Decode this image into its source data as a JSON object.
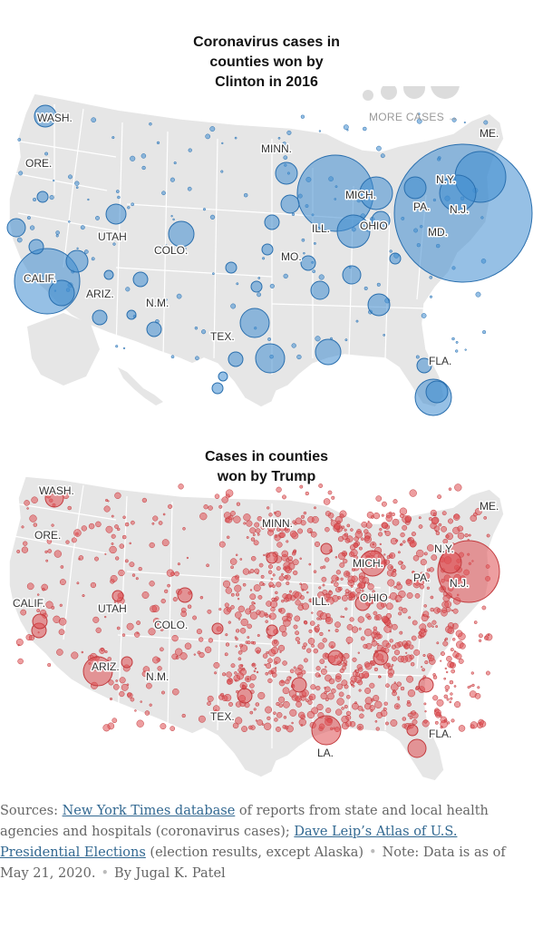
{
  "maps": [
    {
      "id": "clinton",
      "title_lines": [
        "Coronavirus cases in",
        "counties won by",
        "Clinton in 2016"
      ],
      "color": "#3f8dcf",
      "stroke": "#2a6fae",
      "legend": {
        "label": "MORE CASES →",
        "sizes": [
          1,
          2,
          3,
          4
        ]
      },
      "labels": [
        "WASH.",
        "ORE.",
        "CALIF.",
        "UTAH",
        "COLO.",
        "ARIZ.",
        "N.M.",
        "TEX.",
        "MINN.",
        "MO.",
        "ILL.",
        "MICH.",
        "OHIO",
        "PA.",
        "N.Y.",
        "N.J.",
        "MD.",
        "ME.",
        "FLA."
      ]
    },
    {
      "id": "trump",
      "title_lines": [
        "Cases in counties",
        "won by Trump"
      ],
      "color": "#de4f52",
      "stroke": "#c23b3e",
      "labels": [
        "WASH.",
        "ORE.",
        "CALIF.",
        "UTAH",
        "COLO.",
        "ARIZ.",
        "N.M.",
        "TEX.",
        "LA.",
        "MINN.",
        "ILL.",
        "MICH.",
        "OHIO",
        "PA.",
        "N.Y.",
        "N.J.",
        "ME.",
        "FLA."
      ]
    }
  ],
  "sources": {
    "prefix": "Sources: ",
    "link1": "New York Times database",
    "text1": " of reports from state and local health agencies and hospitals (coronavirus cases); ",
    "link2": "Dave Leip’s Atlas of U.S. Presidential Elections",
    "text2": " (election results, except Alaska)",
    "sep": "•",
    "note": "Note: Data is as of May 21, 2020.",
    "byline": "By Jugal K. Patel"
  }
}
